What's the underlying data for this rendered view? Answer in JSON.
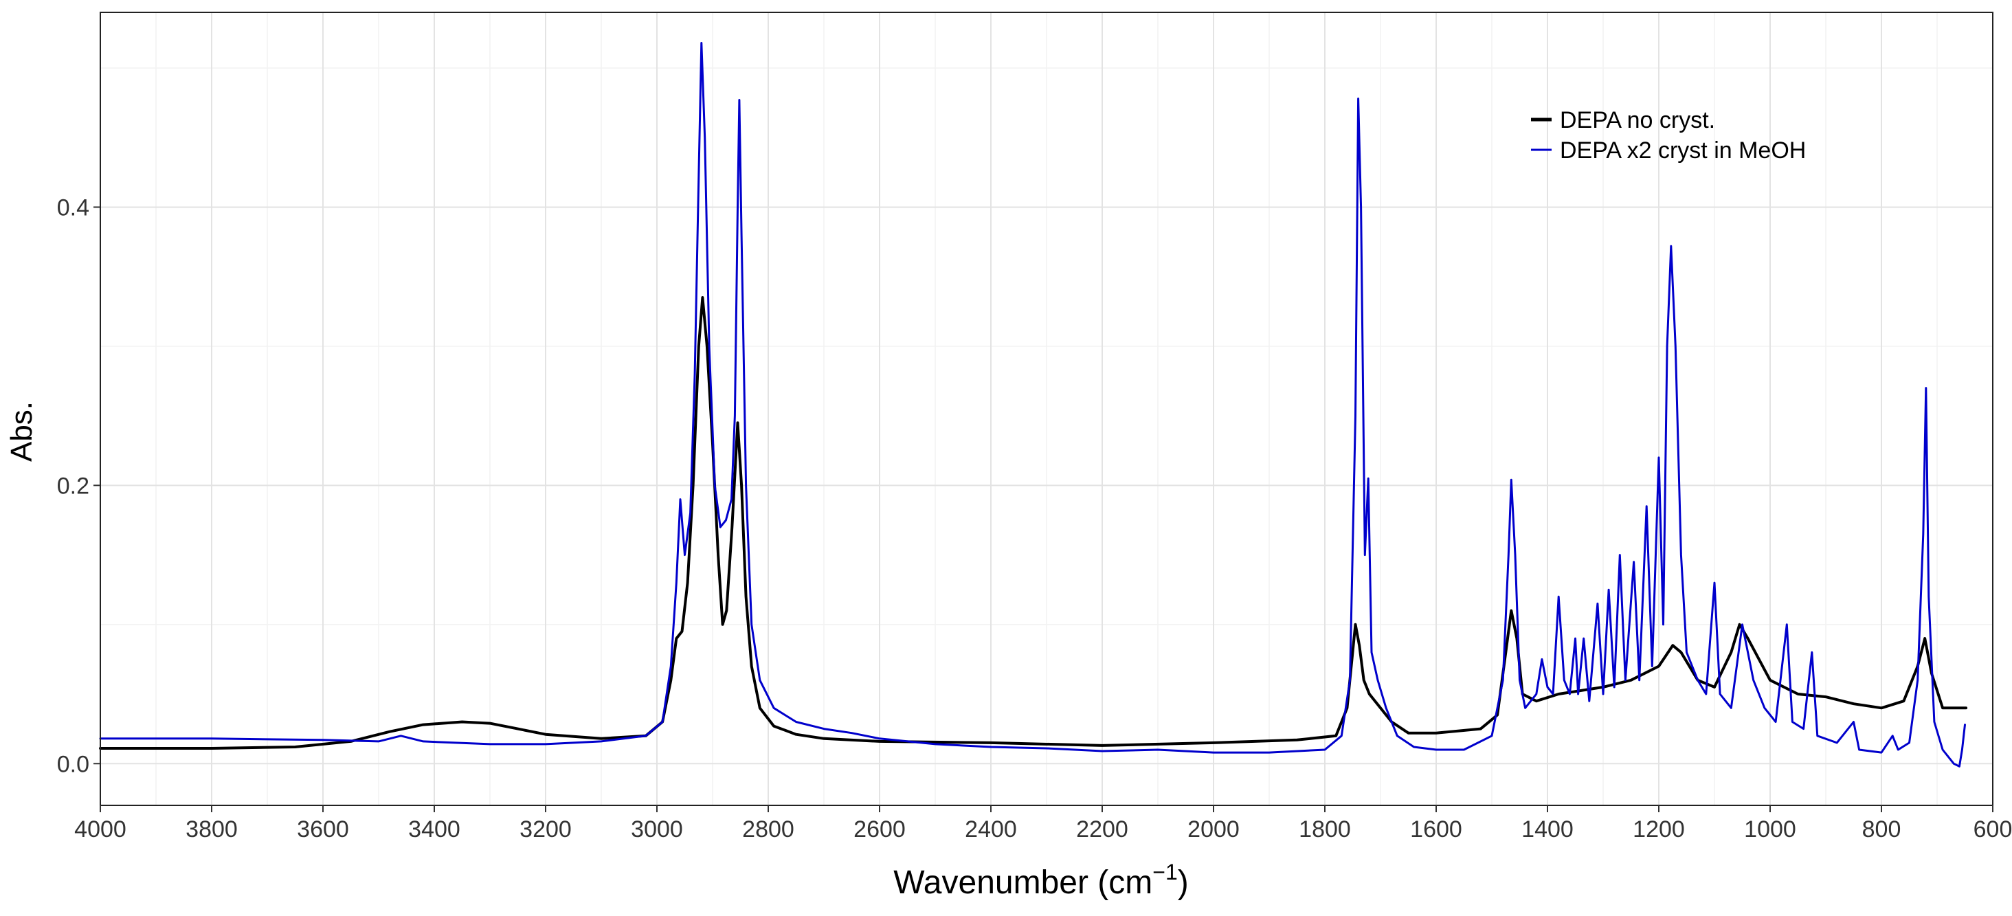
{
  "chart_data": {
    "type": "line",
    "title": "",
    "xlabel": "Wavenumber (cm",
    "xlabel_sup": "−1",
    "xlabel_close": ")",
    "ylabel": "Abs.",
    "xlim": [
      4000,
      600
    ],
    "ylim": [
      -0.03,
      0.54
    ],
    "x_reversed": true,
    "grid": true,
    "x_ticks": [
      4000,
      3800,
      3600,
      3400,
      3200,
      3000,
      2800,
      2600,
      2400,
      2200,
      2000,
      1800,
      1600,
      1400,
      1200,
      1000,
      800,
      600
    ],
    "y_ticks": [
      0.0,
      0.2,
      0.4
    ],
    "y_tick_labels": [
      "0.0",
      "0.2",
      "0.4"
    ],
    "legend": {
      "position": "top-right"
    },
    "series": [
      {
        "name": "DEPA no cryst.",
        "color": "#000000",
        "points": [
          [
            4000,
            0.011
          ],
          [
            3800,
            0.011
          ],
          [
            3650,
            0.012
          ],
          [
            3550,
            0.016
          ],
          [
            3480,
            0.023
          ],
          [
            3420,
            0.028
          ],
          [
            3350,
            0.03
          ],
          [
            3300,
            0.029
          ],
          [
            3250,
            0.025
          ],
          [
            3200,
            0.021
          ],
          [
            3100,
            0.018
          ],
          [
            3020,
            0.02
          ],
          [
            2990,
            0.03
          ],
          [
            2975,
            0.06
          ],
          [
            2965,
            0.09
          ],
          [
            2955,
            0.095
          ],
          [
            2945,
            0.13
          ],
          [
            2935,
            0.2
          ],
          [
            2925,
            0.3
          ],
          [
            2918,
            0.335
          ],
          [
            2910,
            0.3
          ],
          [
            2900,
            0.23
          ],
          [
            2890,
            0.15
          ],
          [
            2882,
            0.1
          ],
          [
            2875,
            0.11
          ],
          [
            2865,
            0.17
          ],
          [
            2855,
            0.245
          ],
          [
            2848,
            0.2
          ],
          [
            2840,
            0.12
          ],
          [
            2830,
            0.07
          ],
          [
            2815,
            0.04
          ],
          [
            2790,
            0.027
          ],
          [
            2750,
            0.021
          ],
          [
            2700,
            0.018
          ],
          [
            2600,
            0.016
          ],
          [
            2400,
            0.015
          ],
          [
            2200,
            0.013
          ],
          [
            2000,
            0.015
          ],
          [
            1850,
            0.017
          ],
          [
            1780,
            0.02
          ],
          [
            1760,
            0.04
          ],
          [
            1745,
            0.1
          ],
          [
            1738,
            0.085
          ],
          [
            1730,
            0.06
          ],
          [
            1720,
            0.05
          ],
          [
            1700,
            0.04
          ],
          [
            1680,
            0.03
          ],
          [
            1650,
            0.022
          ],
          [
            1600,
            0.022
          ],
          [
            1520,
            0.025
          ],
          [
            1490,
            0.035
          ],
          [
            1475,
            0.08
          ],
          [
            1465,
            0.11
          ],
          [
            1455,
            0.09
          ],
          [
            1445,
            0.05
          ],
          [
            1420,
            0.045
          ],
          [
            1380,
            0.05
          ],
          [
            1300,
            0.055
          ],
          [
            1250,
            0.06
          ],
          [
            1200,
            0.07
          ],
          [
            1175,
            0.085
          ],
          [
            1160,
            0.08
          ],
          [
            1130,
            0.06
          ],
          [
            1100,
            0.055
          ],
          [
            1070,
            0.08
          ],
          [
            1055,
            0.1
          ],
          [
            1040,
            0.09
          ],
          [
            1000,
            0.06
          ],
          [
            950,
            0.05
          ],
          [
            900,
            0.048
          ],
          [
            850,
            0.043
          ],
          [
            800,
            0.04
          ],
          [
            760,
            0.045
          ],
          [
            735,
            0.07
          ],
          [
            722,
            0.09
          ],
          [
            710,
            0.065
          ],
          [
            690,
            0.04
          ],
          [
            660,
            0.04
          ],
          [
            648,
            0.04
          ]
        ]
      },
      {
        "name": "DEPA x2 cryst in MeOH",
        "color": "#0000cc",
        "points": [
          [
            4000,
            0.018
          ],
          [
            3800,
            0.018
          ],
          [
            3600,
            0.017
          ],
          [
            3500,
            0.016
          ],
          [
            3460,
            0.02
          ],
          [
            3420,
            0.016
          ],
          [
            3300,
            0.014
          ],
          [
            3200,
            0.014
          ],
          [
            3100,
            0.016
          ],
          [
            3020,
            0.02
          ],
          [
            2990,
            0.03
          ],
          [
            2975,
            0.07
          ],
          [
            2965,
            0.13
          ],
          [
            2958,
            0.19
          ],
          [
            2950,
            0.15
          ],
          [
            2940,
            0.18
          ],
          [
            2932,
            0.28
          ],
          [
            2926,
            0.4
          ],
          [
            2920,
            0.518
          ],
          [
            2914,
            0.45
          ],
          [
            2906,
            0.3
          ],
          [
            2896,
            0.2
          ],
          [
            2886,
            0.17
          ],
          [
            2876,
            0.175
          ],
          [
            2866,
            0.19
          ],
          [
            2860,
            0.25
          ],
          [
            2855,
            0.4
          ],
          [
            2852,
            0.477
          ],
          [
            2848,
            0.38
          ],
          [
            2840,
            0.2
          ],
          [
            2830,
            0.1
          ],
          [
            2815,
            0.06
          ],
          [
            2790,
            0.04
          ],
          [
            2750,
            0.03
          ],
          [
            2700,
            0.025
          ],
          [
            2650,
            0.022
          ],
          [
            2600,
            0.018
          ],
          [
            2500,
            0.014
          ],
          [
            2400,
            0.012
          ],
          [
            2300,
            0.011
          ],
          [
            2200,
            0.009
          ],
          [
            2100,
            0.01
          ],
          [
            2000,
            0.008
          ],
          [
            1900,
            0.008
          ],
          [
            1800,
            0.01
          ],
          [
            1770,
            0.02
          ],
          [
            1755,
            0.06
          ],
          [
            1745,
            0.25
          ],
          [
            1740,
            0.478
          ],
          [
            1735,
            0.4
          ],
          [
            1728,
            0.15
          ],
          [
            1722,
            0.205
          ],
          [
            1716,
            0.08
          ],
          [
            1705,
            0.06
          ],
          [
            1690,
            0.04
          ],
          [
            1670,
            0.02
          ],
          [
            1640,
            0.012
          ],
          [
            1600,
            0.01
          ],
          [
            1550,
            0.01
          ],
          [
            1500,
            0.02
          ],
          [
            1480,
            0.06
          ],
          [
            1470,
            0.15
          ],
          [
            1465,
            0.204
          ],
          [
            1458,
            0.15
          ],
          [
            1450,
            0.06
          ],
          [
            1440,
            0.04
          ],
          [
            1420,
            0.05
          ],
          [
            1410,
            0.075
          ],
          [
            1400,
            0.055
          ],
          [
            1390,
            0.05
          ],
          [
            1380,
            0.12
          ],
          [
            1370,
            0.06
          ],
          [
            1360,
            0.05
          ],
          [
            1350,
            0.09
          ],
          [
            1345,
            0.05
          ],
          [
            1335,
            0.09
          ],
          [
            1325,
            0.045
          ],
          [
            1310,
            0.115
          ],
          [
            1300,
            0.05
          ],
          [
            1290,
            0.125
          ],
          [
            1280,
            0.055
          ],
          [
            1270,
            0.15
          ],
          [
            1260,
            0.06
          ],
          [
            1245,
            0.145
          ],
          [
            1235,
            0.06
          ],
          [
            1222,
            0.185
          ],
          [
            1212,
            0.07
          ],
          [
            1200,
            0.22
          ],
          [
            1192,
            0.1
          ],
          [
            1185,
            0.3
          ],
          [
            1178,
            0.372
          ],
          [
            1170,
            0.3
          ],
          [
            1160,
            0.15
          ],
          [
            1150,
            0.08
          ],
          [
            1130,
            0.06
          ],
          [
            1115,
            0.05
          ],
          [
            1100,
            0.13
          ],
          [
            1090,
            0.05
          ],
          [
            1070,
            0.04
          ],
          [
            1050,
            0.1
          ],
          [
            1030,
            0.06
          ],
          [
            1010,
            0.04
          ],
          [
            990,
            0.03
          ],
          [
            970,
            0.1
          ],
          [
            960,
            0.03
          ],
          [
            940,
            0.025
          ],
          [
            925,
            0.08
          ],
          [
            915,
            0.02
          ],
          [
            880,
            0.015
          ],
          [
            850,
            0.03
          ],
          [
            840,
            0.01
          ],
          [
            800,
            0.008
          ],
          [
            780,
            0.02
          ],
          [
            770,
            0.01
          ],
          [
            750,
            0.015
          ],
          [
            735,
            0.06
          ],
          [
            725,
            0.165
          ],
          [
            720,
            0.27
          ],
          [
            715,
            0.12
          ],
          [
            705,
            0.03
          ],
          [
            690,
            0.01
          ],
          [
            670,
            0.0
          ],
          [
            660,
            -0.002
          ],
          [
            655,
            0.01
          ],
          [
            650,
            0.028
          ]
        ]
      }
    ]
  }
}
